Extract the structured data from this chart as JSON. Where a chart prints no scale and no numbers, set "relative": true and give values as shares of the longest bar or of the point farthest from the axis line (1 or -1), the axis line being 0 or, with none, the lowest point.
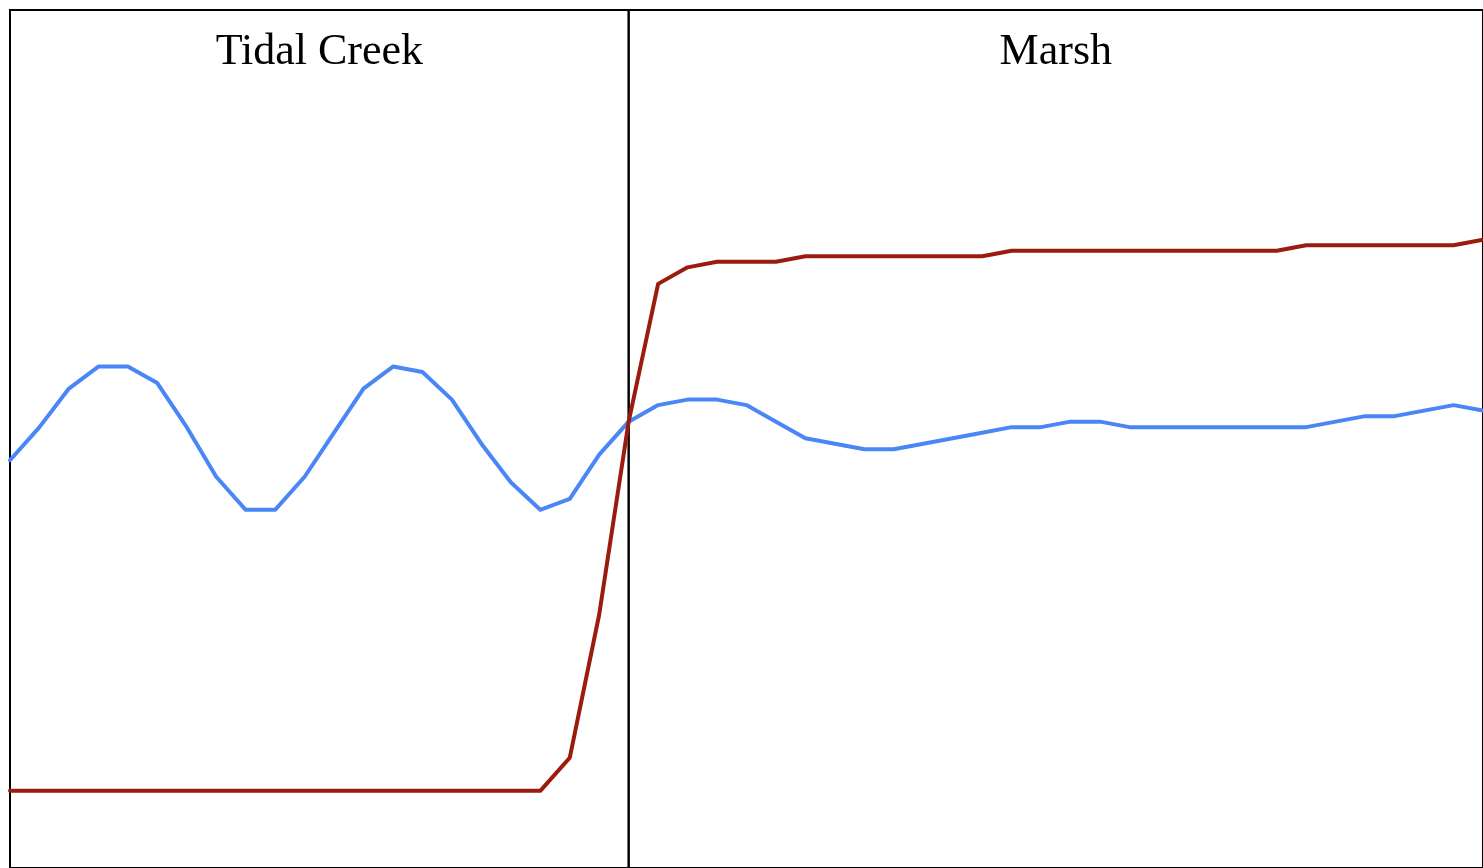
{
  "chart_data": {
    "type": "line",
    "relative": true,
    "categories": [
      null,
      null,
      null,
      null,
      null,
      null,
      null,
      null,
      null,
      null,
      null,
      null,
      null,
      null,
      null,
      null,
      null,
      null,
      null,
      null,
      null,
      null,
      null,
      null,
      null,
      null,
      null,
      null,
      null,
      null,
      null,
      null,
      null,
      null,
      null,
      null,
      null,
      null,
      null,
      null,
      null,
      null,
      null,
      null,
      null,
      null,
      null,
      null,
      null,
      null,
      null
    ],
    "series": [
      {
        "color": "#4a86f5",
        "values": [
          0.6,
          0.66,
          0.73,
          0.77,
          0.77,
          0.74,
          0.66,
          0.57,
          0.51,
          0.51,
          0.57,
          0.65,
          0.73,
          0.77,
          0.76,
          0.71,
          0.63,
          0.56,
          0.51,
          0.53,
          0.61,
          0.67,
          0.7,
          0.71,
          0.71,
          0.7,
          0.67,
          0.64,
          0.63,
          0.62,
          0.62,
          0.63,
          0.64,
          0.65,
          0.66,
          0.66,
          0.67,
          0.67,
          0.66,
          0.66,
          0.66,
          0.66,
          0.66,
          0.66,
          0.66,
          0.67,
          0.68,
          0.68,
          0.69,
          0.7,
          0.69
        ]
      },
      {
        "color": "#9b1c0f",
        "values": [
          0,
          0,
          0,
          0,
          0,
          0,
          0,
          0,
          0,
          0,
          0,
          0,
          0,
          0,
          0,
          0,
          0,
          0,
          0,
          0.06,
          0.32,
          0.67,
          0.92,
          0.95,
          0.96,
          0.96,
          0.96,
          0.97,
          0.97,
          0.97,
          0.97,
          0.97,
          0.97,
          0.97,
          0.98,
          0.98,
          0.98,
          0.98,
          0.98,
          0.98,
          0.98,
          0.98,
          0.98,
          0.98,
          0.99,
          0.99,
          0.99,
          0.99,
          0.99,
          0.99,
          1.0
        ]
      }
    ],
    "annotations": [
      "Tidal Creek",
      "Marsh"
    ],
    "marker": "none",
    "line_style": "solid"
  }
}
